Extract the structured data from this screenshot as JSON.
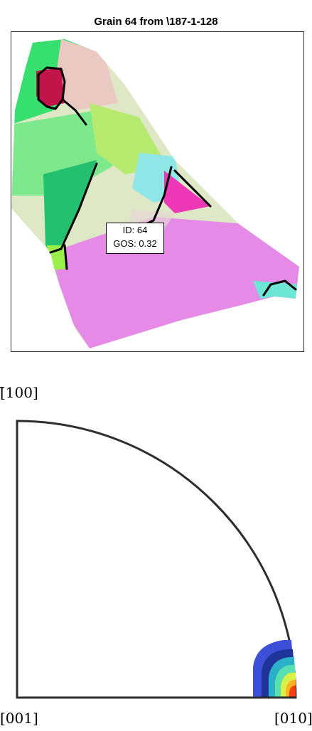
{
  "title": "Grain 64 from \\187-1-128",
  "grain_info": {
    "id_line": "ID: 64",
    "gos_line": "GOS: 0.32"
  },
  "pole_figure": {
    "label_top": "[̄100]",
    "label_bottom_left": "[001]",
    "label_bottom_right": "[010]"
  },
  "colors": {
    "grain_green": "#33e266",
    "grain_magenta": "#e47ee6",
    "grain_crimson": "#c1154a",
    "contour_dark": "#2a3a9a"
  }
}
